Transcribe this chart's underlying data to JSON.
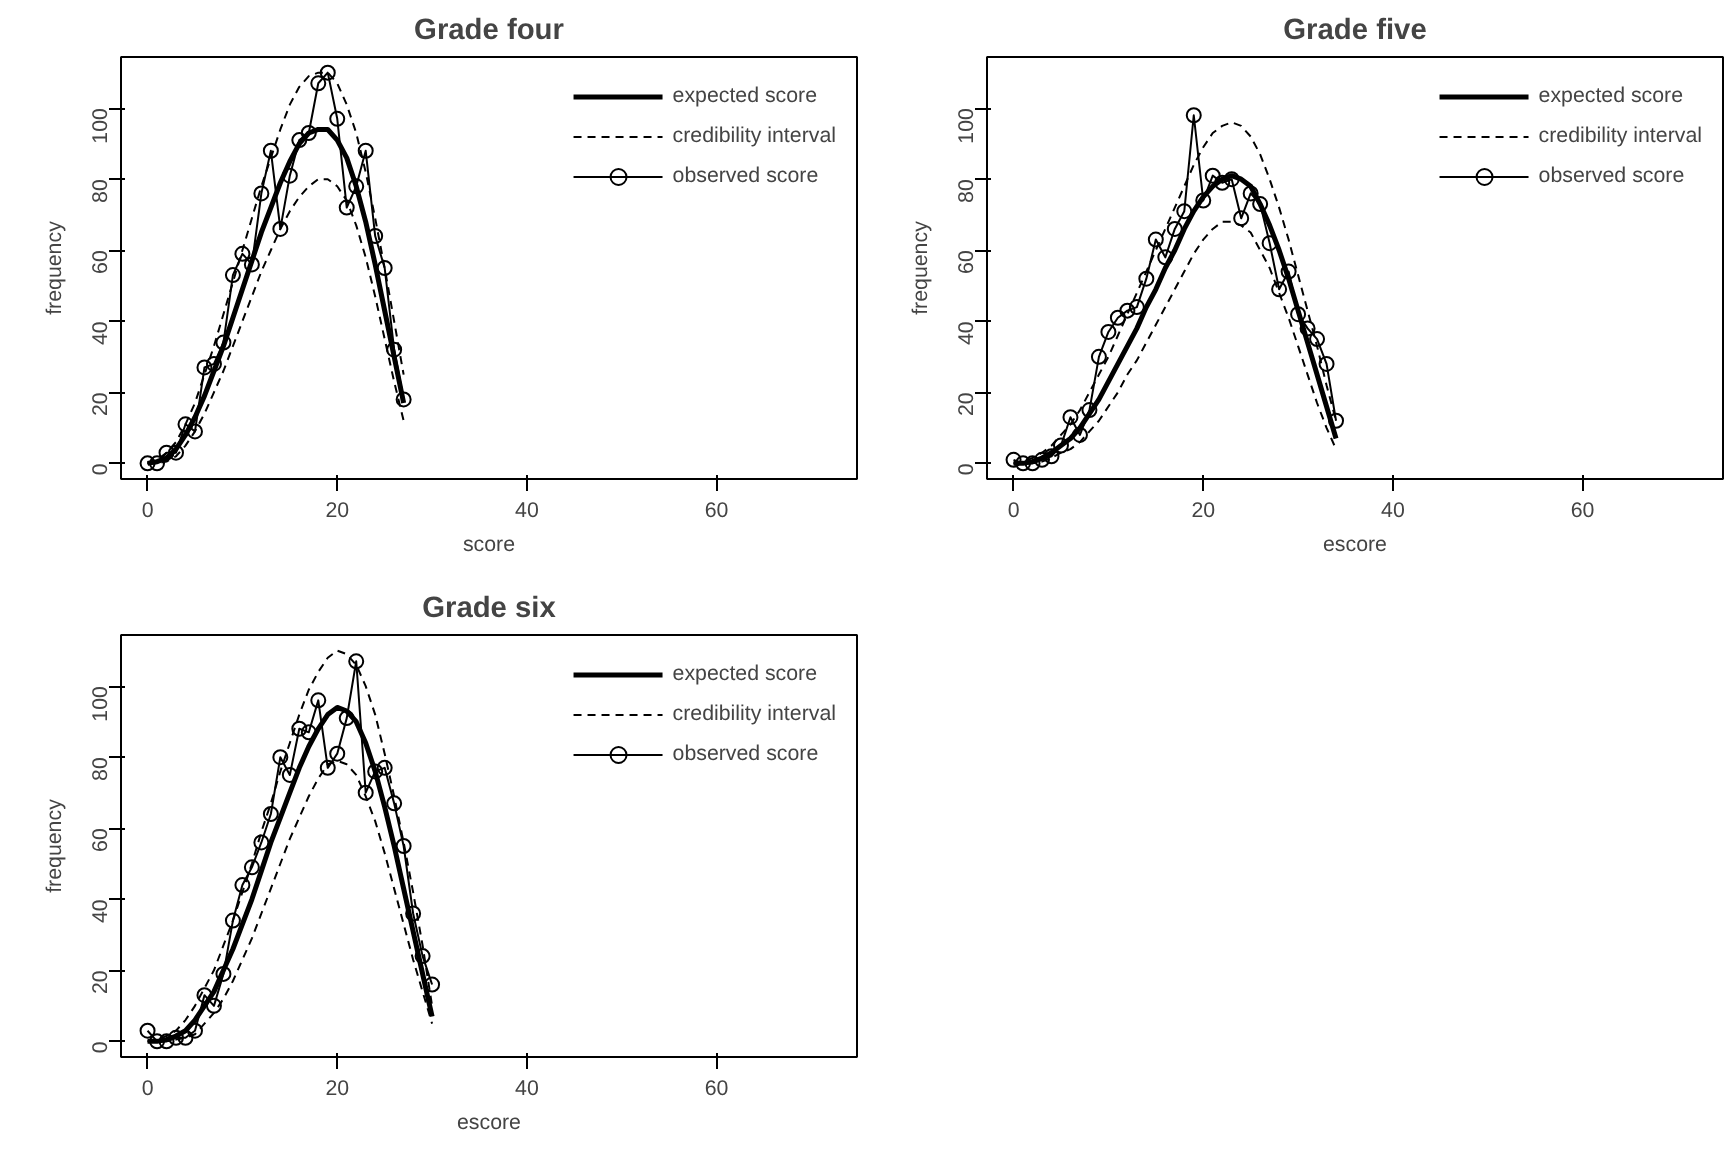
{
  "chart_data": [
    {
      "type": "line",
      "title": "Grade four",
      "xlabel": "score",
      "ylabel": "frequency",
      "xlim": [
        -2.8,
        74.8
      ],
      "ylim": [
        -4.4,
        114.4
      ],
      "xticks": [
        0,
        20,
        40,
        60
      ],
      "yticks": [
        0,
        20,
        40,
        60,
        80,
        100
      ],
      "grid": false,
      "legend": "top right",
      "series": [
        {
          "name": "expected score",
          "color": "#000000",
          "line_style": "solid",
          "marker": "none",
          "x": [
            0,
            1,
            2,
            3,
            4,
            5,
            6,
            7,
            8,
            9,
            10,
            11,
            12,
            13,
            14,
            15,
            16,
            17,
            18,
            19,
            20,
            21,
            22,
            23,
            24,
            25,
            26,
            27
          ],
          "values": [
            0,
            0.5,
            1.5,
            4,
            8,
            13,
            19,
            26,
            33,
            41,
            49,
            57,
            65,
            72,
            79,
            85,
            90,
            93,
            94,
            94,
            91,
            86,
            78,
            68,
            56,
            43,
            30,
            17
          ]
        },
        {
          "name": "credibility interval",
          "color": "#000000",
          "line_style": "dashed",
          "marker": "none",
          "x": [
            0,
            1,
            2,
            3,
            4,
            5,
            6,
            7,
            8,
            9,
            10,
            11,
            12,
            13,
            14,
            15,
            16,
            17,
            18,
            19,
            20,
            21,
            22,
            23,
            24,
            25,
            26,
            27
          ],
          "values": [
            0,
            1,
            3,
            6,
            11,
            17,
            25,
            33,
            42,
            51,
            60,
            69,
            78,
            86,
            94,
            101,
            106,
            109,
            110,
            110,
            107,
            101,
            93,
            82,
            69,
            55,
            40,
            25
          ]
        },
        {
          "color": "#000000",
          "line_style": "dashed",
          "marker": "none",
          "x": [
            0,
            1,
            2,
            3,
            4,
            5,
            6,
            7,
            8,
            9,
            10,
            11,
            12,
            13,
            14,
            15,
            16,
            17,
            18,
            19,
            20,
            21,
            22,
            23,
            24,
            25,
            26,
            27
          ],
          "values": [
            0,
            0,
            0.5,
            2,
            5,
            9,
            14,
            20,
            26,
            33,
            40,
            47,
            54,
            60,
            66,
            71,
            75,
            78,
            80,
            80,
            78,
            74,
            67,
            58,
            47,
            35,
            23,
            12
          ]
        },
        {
          "name": "observed score",
          "color": "#000000",
          "line_style": "solid",
          "marker": "circle",
          "x": [
            0,
            1,
            2,
            3,
            4,
            5,
            6,
            7,
            8,
            9,
            10,
            11,
            12,
            13,
            14,
            15,
            16,
            17,
            18,
            19,
            20,
            21,
            22,
            23,
            24,
            25,
            26,
            27
          ],
          "values": [
            0,
            0,
            3,
            3,
            11,
            9,
            27,
            28,
            34,
            53,
            59,
            56,
            76,
            88,
            66,
            81,
            91,
            93,
            107,
            110,
            97,
            72,
            78,
            88,
            64,
            55,
            32,
            18
          ]
        }
      ]
    },
    {
      "type": "line",
      "title": "Grade five",
      "xlabel": "escore",
      "ylabel": "frequency",
      "xlim": [
        -2.8,
        74.8
      ],
      "ylim": [
        -4.4,
        114.4
      ],
      "xticks": [
        0,
        20,
        40,
        60
      ],
      "yticks": [
        0,
        20,
        40,
        60,
        80,
        100
      ],
      "grid": false,
      "legend": "top right",
      "series": [
        {
          "name": "expected score",
          "color": "#000000",
          "line_style": "solid",
          "marker": "none",
          "x": [
            0,
            1,
            2,
            3,
            4,
            5,
            6,
            7,
            8,
            9,
            10,
            11,
            12,
            13,
            14,
            15,
            16,
            17,
            18,
            19,
            20,
            21,
            22,
            23,
            24,
            25,
            26,
            27,
            28,
            29,
            30,
            31,
            32,
            33,
            34
          ],
          "values": [
            0,
            0,
            0.5,
            1.5,
            3,
            5,
            7,
            10,
            14,
            18,
            23,
            28,
            33,
            38,
            44,
            49,
            55,
            60,
            66,
            71,
            75,
            78,
            80,
            81,
            80,
            78,
            73,
            67,
            60,
            52,
            43,
            34,
            25,
            16,
            7
          ]
        },
        {
          "name": "credibility interval",
          "color": "#000000",
          "line_style": "dashed",
          "marker": "none",
          "x": [
            0,
            1,
            2,
            3,
            4,
            5,
            6,
            7,
            8,
            9,
            10,
            11,
            12,
            13,
            14,
            15,
            16,
            17,
            18,
            19,
            20,
            21,
            22,
            23,
            24,
            25,
            26,
            27,
            28,
            29,
            30,
            31,
            32,
            33,
            34
          ],
          "values": [
            0,
            0.5,
            1.5,
            3,
            5,
            8,
            11,
            15,
            20,
            25,
            30,
            36,
            42,
            48,
            54,
            60,
            66,
            72,
            78,
            84,
            89,
            93,
            95,
            96,
            95,
            92,
            87,
            80,
            72,
            63,
            53,
            43,
            33,
            22,
            12
          ]
        },
        {
          "color": "#000000",
          "line_style": "dashed",
          "marker": "none",
          "x": [
            0,
            1,
            2,
            3,
            4,
            5,
            6,
            7,
            8,
            9,
            10,
            11,
            12,
            13,
            14,
            15,
            16,
            17,
            18,
            19,
            20,
            21,
            22,
            23,
            24,
            25,
            26,
            27,
            28,
            29,
            30,
            31,
            32,
            33,
            34
          ],
          "values": [
            0,
            0,
            0,
            0.5,
            1.5,
            3,
            4,
            6,
            9,
            12,
            16,
            20,
            25,
            29,
            34,
            39,
            44,
            49,
            54,
            59,
            63,
            66,
            68,
            68,
            67,
            65,
            60,
            55,
            48,
            41,
            33,
            25,
            17,
            10,
            4
          ]
        },
        {
          "name": "observed score",
          "color": "#000000",
          "line_style": "solid",
          "marker": "circle",
          "x": [
            0,
            1,
            2,
            3,
            4,
            5,
            6,
            7,
            8,
            9,
            10,
            11,
            12,
            13,
            14,
            15,
            16,
            17,
            18,
            19,
            20,
            21,
            22,
            23,
            24,
            25,
            26,
            27,
            28,
            29,
            30,
            31,
            32,
            33,
            34
          ],
          "values": [
            1,
            0,
            0,
            1,
            2,
            5,
            13,
            8,
            15,
            30,
            37,
            41,
            43,
            44,
            52,
            63,
            58,
            66,
            71,
            98,
            74,
            81,
            79,
            80,
            69,
            76,
            73,
            62,
            49,
            54,
            42,
            38,
            35,
            28,
            12
          ]
        }
      ]
    },
    {
      "type": "line",
      "title": "Grade six",
      "xlabel": "escore",
      "ylabel": "frequency",
      "xlim": [
        -2.8,
        74.8
      ],
      "ylim": [
        -4.4,
        114.4
      ],
      "xticks": [
        0,
        20,
        40,
        60
      ],
      "yticks": [
        0,
        20,
        40,
        60,
        80,
        100
      ],
      "grid": false,
      "legend": "top right",
      "series": [
        {
          "name": "expected score",
          "color": "#000000",
          "line_style": "solid",
          "marker": "none",
          "x": [
            0,
            1,
            2,
            3,
            4,
            5,
            6,
            7,
            8,
            9,
            10,
            11,
            12,
            13,
            14,
            15,
            16,
            17,
            18,
            19,
            20,
            21,
            22,
            23,
            24,
            25,
            26,
            27,
            28,
            29,
            30
          ],
          "values": [
            0,
            0,
            0.5,
            1.5,
            3,
            6,
            10,
            14,
            20,
            26,
            33,
            40,
            48,
            56,
            63,
            70,
            77,
            83,
            88,
            92,
            94,
            93,
            90,
            84,
            76,
            66,
            55,
            43,
            31,
            19,
            7
          ]
        },
        {
          "name": "credibility interval",
          "color": "#000000",
          "line_style": "dashed",
          "marker": "none",
          "x": [
            0,
            1,
            2,
            3,
            4,
            5,
            6,
            7,
            8,
            9,
            10,
            11,
            12,
            13,
            14,
            15,
            16,
            17,
            18,
            19,
            20,
            21,
            22,
            23,
            24,
            25,
            26,
            27,
            28,
            29,
            30
          ],
          "values": [
            0,
            0.5,
            1.5,
            3,
            6,
            10,
            15,
            20,
            27,
            34,
            42,
            50,
            59,
            67,
            76,
            84,
            92,
            99,
            104,
            108,
            110,
            109,
            106,
            100,
            92,
            81,
            69,
            56,
            42,
            27,
            10
          ]
        },
        {
          "color": "#000000",
          "line_style": "dashed",
          "marker": "none",
          "x": [
            0,
            1,
            2,
            3,
            4,
            5,
            6,
            7,
            8,
            9,
            10,
            11,
            12,
            13,
            14,
            15,
            16,
            17,
            18,
            19,
            20,
            21,
            22,
            23,
            24,
            25,
            26,
            27,
            28,
            29,
            30
          ],
          "values": [
            0,
            0,
            0,
            0.5,
            1,
            2,
            5,
            8,
            12,
            17,
            23,
            29,
            36,
            43,
            50,
            57,
            63,
            69,
            74,
            78,
            79,
            78,
            75,
            69,
            62,
            53,
            43,
            33,
            23,
            14,
            5
          ]
        },
        {
          "name": "observed score",
          "color": "#000000",
          "line_style": "solid",
          "marker": "circle",
          "x": [
            0,
            1,
            2,
            3,
            4,
            5,
            6,
            7,
            8,
            9,
            10,
            11,
            12,
            13,
            14,
            15,
            16,
            17,
            18,
            19,
            20,
            21,
            22,
            23,
            24,
            25,
            26,
            27,
            28,
            29,
            30
          ],
          "values": [
            3,
            0,
            0,
            1,
            1,
            3,
            13,
            10,
            19,
            34,
            44,
            49,
            56,
            64,
            80,
            75,
            88,
            87,
            96,
            77,
            81,
            91,
            107,
            70,
            76,
            77,
            67,
            55,
            36,
            24,
            16
          ]
        }
      ]
    }
  ]
}
